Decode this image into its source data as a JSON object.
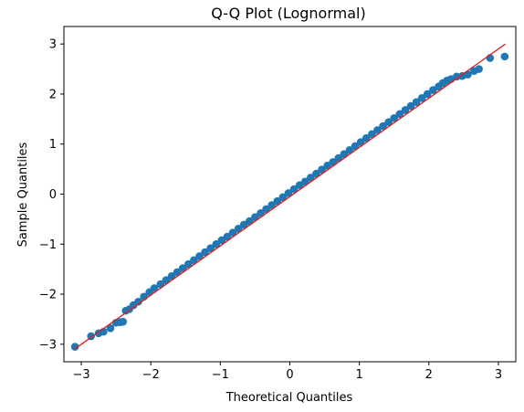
{
  "chart_data": {
    "type": "scatter",
    "title": "Q-Q Plot (Lognormal)",
    "xlabel": "Theoretical Quantiles",
    "ylabel": "Sample Quantiles",
    "xlim": [
      -3.25,
      3.25
    ],
    "ylim": [
      -3.35,
      3.35
    ],
    "xticks": [
      -3,
      -2,
      -1,
      0,
      1,
      2,
      3
    ],
    "yticks": [
      -3,
      -2,
      -1,
      0,
      1,
      2,
      3
    ],
    "xtick_labels": [
      "−3",
      "−2",
      "−1",
      "0",
      "1",
      "2",
      "3"
    ],
    "ytick_labels": [
      "−3",
      "−2",
      "−1",
      "0",
      "1",
      "2",
      "3"
    ],
    "grid": false,
    "marker_color": "#1f77b4",
    "line_color": "#d62728",
    "reference_line": {
      "x": [
        -3.1,
        3.1
      ],
      "y": [
        -3.1,
        3.0
      ]
    },
    "series": [
      {
        "x": [
          -3.09,
          -2.86,
          -2.75,
          -2.68,
          -2.58,
          -2.5,
          -2.44,
          -2.4,
          -2.36,
          -2.31,
          -2.25,
          -2.18,
          -2.1,
          -2.02,
          -1.95,
          -1.86,
          -1.78,
          -1.7,
          -1.62,
          -1.54,
          -1.46,
          -1.38,
          -1.3,
          -1.22,
          -1.14,
          -1.06,
          -0.98,
          -0.9,
          -0.82,
          -0.74,
          -0.66,
          -0.58,
          -0.5,
          -0.42,
          -0.34,
          -0.26,
          -0.18,
          -0.1,
          -0.02,
          0.06,
          0.14,
          0.22,
          0.3,
          0.38,
          0.46,
          0.54,
          0.62,
          0.7,
          0.78,
          0.86,
          0.94,
          1.02,
          1.1,
          1.18,
          1.26,
          1.34,
          1.42,
          1.5,
          1.58,
          1.66,
          1.74,
          1.82,
          1.9,
          1.98,
          2.06,
          2.14,
          2.2,
          2.26,
          2.32,
          2.4,
          2.48,
          2.56,
          2.65,
          2.72,
          2.88,
          3.09
        ],
        "y": [
          -3.05,
          -2.84,
          -2.78,
          -2.75,
          -2.68,
          -2.57,
          -2.56,
          -2.55,
          -2.33,
          -2.3,
          -2.22,
          -2.15,
          -2.05,
          -1.96,
          -1.88,
          -1.8,
          -1.72,
          -1.64,
          -1.56,
          -1.48,
          -1.4,
          -1.32,
          -1.24,
          -1.16,
          -1.08,
          -1.0,
          -0.92,
          -0.85,
          -0.77,
          -0.69,
          -0.61,
          -0.54,
          -0.46,
          -0.38,
          -0.3,
          -0.22,
          -0.14,
          -0.06,
          0.02,
          0.1,
          0.18,
          0.25,
          0.33,
          0.41,
          0.49,
          0.57,
          0.64,
          0.72,
          0.8,
          0.88,
          0.96,
          1.04,
          1.12,
          1.2,
          1.28,
          1.36,
          1.44,
          1.52,
          1.6,
          1.68,
          1.76,
          1.84,
          1.92,
          2.0,
          2.08,
          2.15,
          2.22,
          2.27,
          2.3,
          2.35,
          2.36,
          2.39,
          2.46,
          2.5,
          2.72,
          2.75
        ]
      }
    ]
  }
}
